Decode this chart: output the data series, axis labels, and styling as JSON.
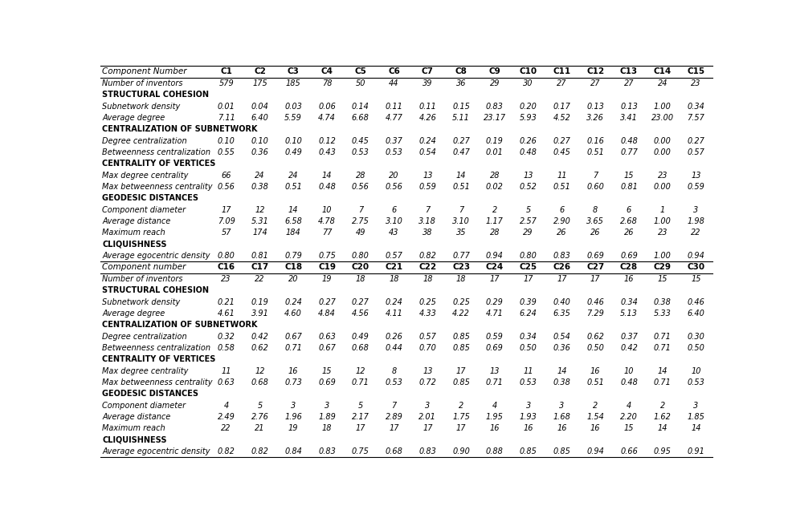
{
  "col_headers_1": [
    "Component Number",
    "C1",
    "C2",
    "C3",
    "C4",
    "C5",
    "C6",
    "C7",
    "C8",
    "C9",
    "C10",
    "C11",
    "C12",
    "C13",
    "C14",
    "C15"
  ],
  "col_headers_2": [
    "Component number",
    "C16",
    "C17",
    "C18",
    "C19",
    "C20",
    "C21",
    "C22",
    "C23",
    "C24",
    "C25",
    "C26",
    "C27",
    "C28",
    "C29",
    "C30"
  ],
  "section1": {
    "rows": [
      {
        "label": "Number of inventors",
        "bold": false,
        "italic": true,
        "values": [
          "579",
          "175",
          "185",
          "78",
          "50",
          "44",
          "39",
          "36",
          "29",
          "30",
          "27",
          "27",
          "27",
          "24",
          "23"
        ]
      },
      {
        "label": "STRUCTURAL COHESION",
        "bold": true,
        "italic": false,
        "values": [
          "",
          "",
          "",
          "",
          "",
          "",
          "",
          "",
          "",
          "",
          "",
          "",
          "",
          "",
          ""
        ]
      },
      {
        "label": "Subnetwork density",
        "bold": false,
        "italic": true,
        "values": [
          "0.01",
          "0.04",
          "0.03",
          "0.06",
          "0.14",
          "0.11",
          "0.11",
          "0.15",
          "0.83",
          "0.20",
          "0.17",
          "0.13",
          "0.13",
          "1.00",
          "0.34"
        ]
      },
      {
        "label": "Average degree",
        "bold": false,
        "italic": true,
        "values": [
          "7.11",
          "6.40",
          "5.59",
          "4.74",
          "6.68",
          "4.77",
          "4.26",
          "5.11",
          "23.17",
          "5.93",
          "4.52",
          "3.26",
          "3.41",
          "23.00",
          "7.57"
        ]
      },
      {
        "label": "CENTRALIZATION OF SUBNETWORK",
        "bold": true,
        "italic": false,
        "values": [
          "",
          "",
          "",
          "",
          "",
          "",
          "",
          "",
          "",
          "",
          "",
          "",
          "",
          "",
          ""
        ]
      },
      {
        "label": "Degree centralization",
        "bold": false,
        "italic": true,
        "values": [
          "0.10",
          "0.10",
          "0.10",
          "0.12",
          "0.45",
          "0.37",
          "0.24",
          "0.27",
          "0.19",
          "0.26",
          "0.27",
          "0.16",
          "0.48",
          "0.00",
          "0.27"
        ]
      },
      {
        "label": "Betweenness centralization",
        "bold": false,
        "italic": true,
        "values": [
          "0.55",
          "0.36",
          "0.49",
          "0.43",
          "0.53",
          "0.53",
          "0.54",
          "0.47",
          "0.01",
          "0.48",
          "0.45",
          "0.51",
          "0.77",
          "0.00",
          "0.57"
        ]
      },
      {
        "label": "CENTRALITY OF VERTICES",
        "bold": true,
        "italic": false,
        "values": [
          "",
          "",
          "",
          "",
          "",
          "",
          "",
          "",
          "",
          "",
          "",
          "",
          "",
          "",
          ""
        ]
      },
      {
        "label": "Max degree centrality",
        "bold": false,
        "italic": true,
        "values": [
          "66",
          "24",
          "24",
          "14",
          "28",
          "20",
          "13",
          "14",
          "28",
          "13",
          "11",
          "7",
          "15",
          "23",
          "13"
        ]
      },
      {
        "label": "Max betweenness centrality",
        "bold": false,
        "italic": true,
        "values": [
          "0.56",
          "0.38",
          "0.51",
          "0.48",
          "0.56",
          "0.56",
          "0.59",
          "0.51",
          "0.02",
          "0.52",
          "0.51",
          "0.60",
          "0.81",
          "0.00",
          "0.59"
        ]
      },
      {
        "label": "GEODESIC DISTANCES",
        "bold": true,
        "italic": false,
        "values": [
          "",
          "",
          "",
          "",
          "",
          "",
          "",
          "",
          "",
          "",
          "",
          "",
          "",
          "",
          ""
        ]
      },
      {
        "label": "Component diameter",
        "bold": false,
        "italic": true,
        "values": [
          "17",
          "12",
          "14",
          "10",
          "7",
          "6",
          "7",
          "7",
          "2",
          "5",
          "6",
          "8",
          "6",
          "1",
          "3"
        ]
      },
      {
        "label": "Average distance",
        "bold": false,
        "italic": true,
        "values": [
          "7.09",
          "5.31",
          "6.58",
          "4.78",
          "2.75",
          "3.10",
          "3.18",
          "3.10",
          "1.17",
          "2.57",
          "2.90",
          "3.65",
          "2.68",
          "1.00",
          "1.98"
        ]
      },
      {
        "label": "Maximum reach",
        "bold": false,
        "italic": true,
        "values": [
          "57",
          "174",
          "184",
          "77",
          "49",
          "43",
          "38",
          "35",
          "28",
          "29",
          "26",
          "26",
          "26",
          "23",
          "22"
        ]
      },
      {
        "label": "CLIQUISHNESS",
        "bold": true,
        "italic": false,
        "values": [
          "",
          "",
          "",
          "",
          "",
          "",
          "",
          "",
          "",
          "",
          "",
          "",
          "",
          "",
          ""
        ]
      },
      {
        "label": "Average egocentric density",
        "bold": false,
        "italic": true,
        "values": [
          "0.80",
          "0.81",
          "0.79",
          "0.75",
          "0.80",
          "0.57",
          "0.82",
          "0.77",
          "0.94",
          "0.80",
          "0.83",
          "0.69",
          "0.69",
          "1.00",
          "0.94"
        ]
      }
    ]
  },
  "section2": {
    "rows": [
      {
        "label": "Number of inventors",
        "bold": false,
        "italic": true,
        "values": [
          "23",
          "22",
          "20",
          "19",
          "18",
          "18",
          "18",
          "18",
          "17",
          "17",
          "17",
          "17",
          "16",
          "15",
          "15"
        ]
      },
      {
        "label": "STRUCTURAL COHESION",
        "bold": true,
        "italic": false,
        "values": [
          "",
          "",
          "",
          "",
          "",
          "",
          "",
          "",
          "",
          "",
          "",
          "",
          "",
          "",
          ""
        ]
      },
      {
        "label": "Subnetwork density",
        "bold": false,
        "italic": true,
        "values": [
          "0.21",
          "0.19",
          "0.24",
          "0.27",
          "0.27",
          "0.24",
          "0.25",
          "0.25",
          "0.29",
          "0.39",
          "0.40",
          "0.46",
          "0.34",
          "0.38",
          "0.46"
        ]
      },
      {
        "label": "Average degree",
        "bold": false,
        "italic": true,
        "values": [
          "4.61",
          "3.91",
          "4.60",
          "4.84",
          "4.56",
          "4.11",
          "4.33",
          "4.22",
          "4.71",
          "6.24",
          "6.35",
          "7.29",
          "5.13",
          "5.33",
          "6.40"
        ]
      },
      {
        "label": "CENTRALIZATION OF SUBNETWORK",
        "bold": true,
        "italic": false,
        "values": [
          "",
          "",
          "",
          "",
          "",
          "",
          "",
          "",
          "",
          "",
          "",
          "",
          "",
          "",
          ""
        ]
      },
      {
        "label": "Degree centralization",
        "bold": false,
        "italic": true,
        "values": [
          "0.32",
          "0.42",
          "0.67",
          "0.63",
          "0.49",
          "0.26",
          "0.57",
          "0.85",
          "0.59",
          "0.34",
          "0.54",
          "0.62",
          "0.37",
          "0.71",
          "0.30"
        ]
      },
      {
        "label": "Betweenness centralization",
        "bold": false,
        "italic": true,
        "values": [
          "0.58",
          "0.62",
          "0.71",
          "0.67",
          "0.68",
          "0.44",
          "0.70",
          "0.85",
          "0.69",
          "0.50",
          "0.36",
          "0.50",
          "0.42",
          "0.71",
          "0.50"
        ]
      },
      {
        "label": "CENTRALITY OF VERTICES",
        "bold": true,
        "italic": false,
        "values": [
          "",
          "",
          "",
          "",
          "",
          "",
          "",
          "",
          "",
          "",
          "",
          "",
          "",
          "",
          ""
        ]
      },
      {
        "label": "Max degree centrality",
        "bold": false,
        "italic": true,
        "values": [
          "11",
          "12",
          "16",
          "15",
          "12",
          "8",
          "13",
          "17",
          "13",
          "11",
          "14",
          "16",
          "10",
          "14",
          "10"
        ]
      },
      {
        "label": "Max betweenness centrality",
        "bold": false,
        "italic": true,
        "values": [
          "0.63",
          "0.68",
          "0.73",
          "0.69",
          "0.71",
          "0.53",
          "0.72",
          "0.85",
          "0.71",
          "0.53",
          "0.38",
          "0.51",
          "0.48",
          "0.71",
          "0.53"
        ]
      },
      {
        "label": "GEODESIC DISTANCES",
        "bold": true,
        "italic": false,
        "values": [
          "",
          "",
          "",
          "",
          "",
          "",
          "",
          "",
          "",
          "",
          "",
          "",
          "",
          "",
          ""
        ]
      },
      {
        "label": "Component diameter",
        "bold": false,
        "italic": true,
        "values": [
          "4",
          "5",
          "3",
          "3",
          "5",
          "7",
          "3",
          "2",
          "4",
          "3",
          "3",
          "2",
          "4",
          "2",
          "3"
        ]
      },
      {
        "label": "Average distance",
        "bold": false,
        "italic": true,
        "values": [
          "2.49",
          "2.76",
          "1.96",
          "1.89",
          "2.17",
          "2.89",
          "2.01",
          "1.75",
          "1.95",
          "1.93",
          "1.68",
          "1.54",
          "2.20",
          "1.62",
          "1.85"
        ]
      },
      {
        "label": "Maximum reach",
        "bold": false,
        "italic": true,
        "values": [
          "22",
          "21",
          "19",
          "18",
          "17",
          "17",
          "17",
          "17",
          "16",
          "16",
          "16",
          "16",
          "15",
          "14",
          "14"
        ]
      },
      {
        "label": "CLIQUISHNESS",
        "bold": true,
        "italic": false,
        "values": [
          "",
          "",
          "",
          "",
          "",
          "",
          "",
          "",
          "",
          "",
          "",
          "",
          "",
          "",
          ""
        ]
      },
      {
        "label": "Average egocentric density",
        "bold": false,
        "italic": true,
        "values": [
          "0.82",
          "0.82",
          "0.84",
          "0.83",
          "0.75",
          "0.68",
          "0.83",
          "0.90",
          "0.88",
          "0.85",
          "0.85",
          "0.94",
          "0.66",
          "0.95",
          "0.91"
        ]
      }
    ]
  },
  "background_color": "#ffffff",
  "text_color": "#000000",
  "font_size": 7.0,
  "header_font_size": 7.5
}
